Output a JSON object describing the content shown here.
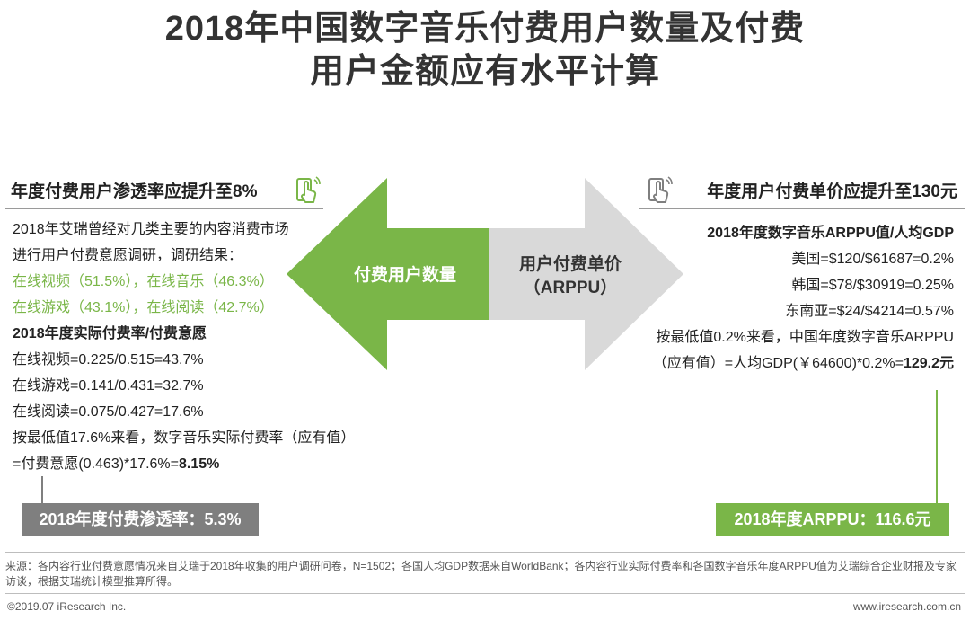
{
  "title": [
    "2018年中国数字音乐付费用户数量及付费",
    "用户金额应有水平计算"
  ],
  "left": {
    "heading": "年度付费用户渗透率应提升至8%",
    "icon": "phone-tap-icon",
    "lines": [
      {
        "text": "2018年艾瑞曾经对几类主要的内容消费市场",
        "style": "normal"
      },
      {
        "text": "进行用户付费意愿调研，调研结果：",
        "style": "normal"
      },
      {
        "text": "在线视频（51.5%），在线音乐（46.3%）",
        "style": "green"
      },
      {
        "text": "在线游戏（43.1%），在线阅读（42.7%）",
        "style": "green"
      },
      {
        "text": "2018年度实际付费率/付费意愿",
        "style": "bold"
      },
      {
        "text": "在线视频=0.225/0.515=43.7%",
        "style": "normal"
      },
      {
        "text": "在线游戏=0.141/0.431=32.7%",
        "style": "normal"
      },
      {
        "text": "在线阅读=0.075/0.427=17.6%",
        "style": "normal"
      },
      {
        "text": "按最低值17.6%来看，数字音乐实际付费率（应有值）",
        "style": "normal"
      }
    ],
    "last_line_prefix": "=付费意愿(0.463)*17.6%=",
    "last_line_value": "8.15%",
    "result_box": "2018年度付费渗透率：5.3%",
    "color": "#7f7f7f"
  },
  "center": {
    "left_arrow_label": "付费用户数量",
    "right_arrow_label_1": "用户付费单价",
    "right_arrow_label_2": "（ARPPU）",
    "left_color": "#7ab648",
    "right_color": "#d9d9d9"
  },
  "right": {
    "heading": "年度用户付费单价应提升至130元",
    "icon": "phone-tap-icon",
    "subheading": "2018年度数字音乐ARPPU值/人均GDP",
    "lines": [
      "美国=$120/$61687=0.2%",
      "韩国=$78/$30919=0.25%",
      "东南亚=$24/$4214=0.57%",
      "按最低值0.2%来看，中国年度数字音乐ARPPU"
    ],
    "last_line_prefix": "（应有值）=人均GDP(￥64600)*0.2%=",
    "last_line_value": "129.2元",
    "result_box": "2018年度ARPPU：116.6元",
    "color": "#7ab648"
  },
  "source": "来源：各内容行业付费意愿情况来自艾瑞于2018年收集的用户调研问卷，N=1502；各国人均GDP数据来自WorldBank；各内容行业实际付费率和各国数字音乐年度ARPPU值为艾瑞综合企业财报及专家访谈，根据艾瑞统计模型推算所得。",
  "footer": {
    "copyright": "©2019.07 iResearch Inc.",
    "site": "www.iresearch.com.cn"
  }
}
